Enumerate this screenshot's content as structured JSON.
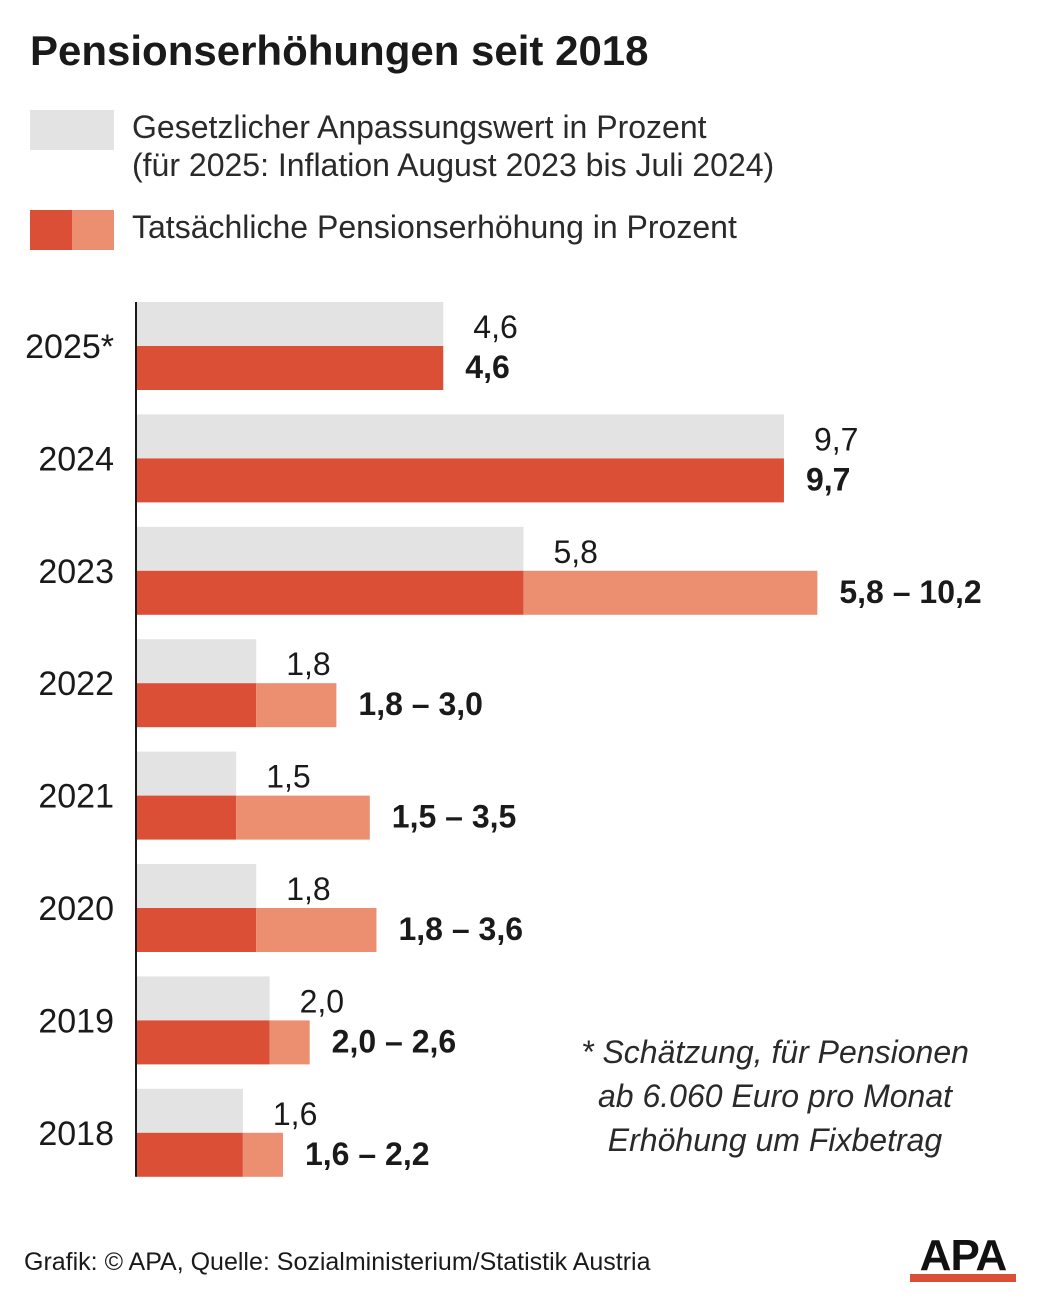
{
  "title": "Pensionserhöhungen seit 2018",
  "legend": {
    "statutory_line1": "Gesetzlicher Anpassungswert in Prozent",
    "statutory_line2": "(für 2025: Inflation August 2023 bis Juli 2024)",
    "actual": "Tatsächliche Pensionserhöhung in Prozent"
  },
  "colors": {
    "statutory": "#e3e3e3",
    "actual_base": "#dc4f37",
    "actual_range": "#ec8e70",
    "axis": "#1a1a1a",
    "logo_bar": "#dc4f37"
  },
  "chart_data": {
    "type": "bar",
    "orientation": "horizontal",
    "categories": [
      "2025*",
      "2024",
      "2023",
      "2022",
      "2021",
      "2020",
      "2019",
      "2018"
    ],
    "series": [
      {
        "name": "Gesetzlicher Anpassungswert in Prozent",
        "values": [
          4.6,
          9.7,
          5.8,
          1.8,
          1.5,
          1.8,
          2.0,
          1.6
        ]
      },
      {
        "name": "Tatsächliche Pensionserhöhung in Prozent",
        "min": [
          4.6,
          9.7,
          5.8,
          1.8,
          1.5,
          1.8,
          2.0,
          1.6
        ],
        "max": [
          4.6,
          9.7,
          10.2,
          3.0,
          3.5,
          3.6,
          2.6,
          2.2
        ]
      }
    ],
    "labels_statutory": [
      "4,6",
      "9,7",
      "5,8",
      "1,8",
      "1,5",
      "1,8",
      "2,0",
      "1,6"
    ],
    "labels_actual": [
      "4,6",
      "9,7",
      "5,8 – 10,2",
      "1,8 – 3,0",
      "1,5 – 3,5",
      "1,8 – 3,6",
      "2,0 – 2,6",
      "1,6 – 2,2"
    ],
    "xlim": [
      0,
      10.2
    ],
    "grid": false,
    "legend_position": "top-left"
  },
  "footnote": [
    "* Schätzung, für Pensionen",
    "ab 6.060 Euro pro Monat",
    "Erhöhung um Fixbetrag"
  ],
  "source": "Grafik: © APA, Quelle: Sozialministerium/Statistik Austria",
  "logo": "APA"
}
